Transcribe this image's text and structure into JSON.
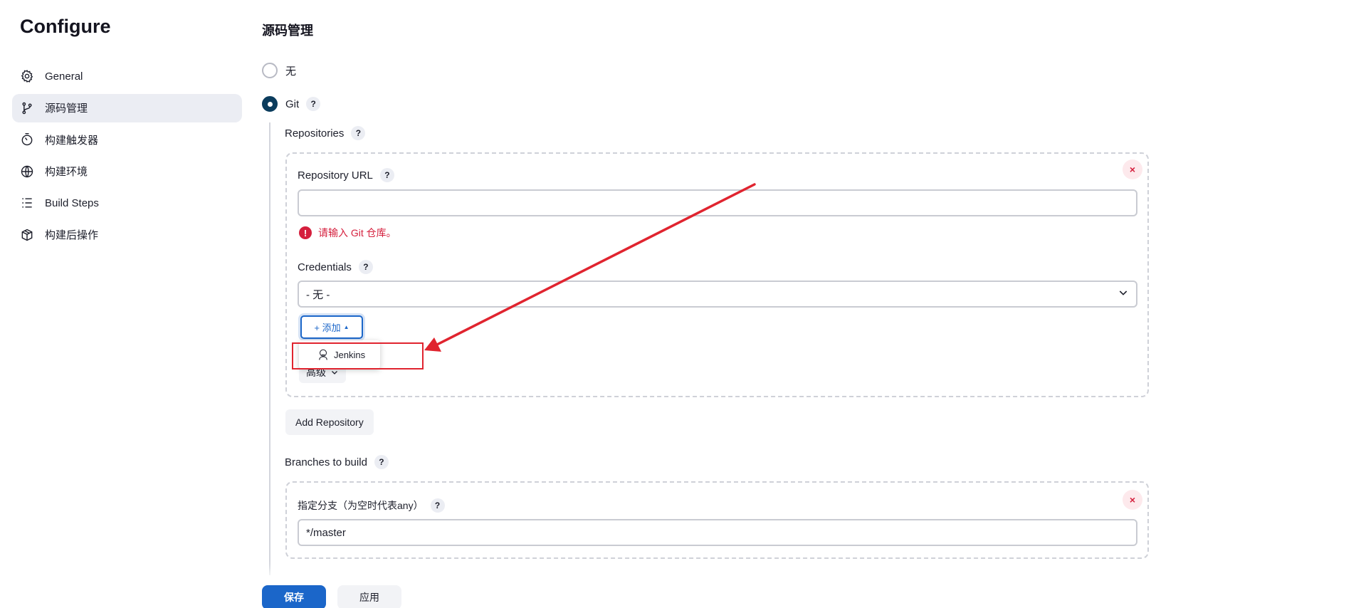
{
  "sidebar": {
    "title": "Configure",
    "items": [
      {
        "label": "General",
        "icon": "gear-icon"
      },
      {
        "label": "源码管理",
        "icon": "git-branch-icon",
        "active": true
      },
      {
        "label": "构建触发器",
        "icon": "timer-icon"
      },
      {
        "label": "构建环境",
        "icon": "globe-icon"
      },
      {
        "label": "Build Steps",
        "icon": "list-icon"
      },
      {
        "label": "构建后操作",
        "icon": "package-icon"
      }
    ]
  },
  "scm": {
    "title": "源码管理",
    "options": [
      {
        "label": "无",
        "checked": false
      },
      {
        "label": "Git",
        "checked": true
      }
    ],
    "help_glyph": "?"
  },
  "git": {
    "repositories_label": "Repositories",
    "repository_url_label": "Repository URL",
    "repository_url_value": "",
    "repository_url_error": "请输入 Git 仓库。",
    "credentials_label": "Credentials",
    "credentials_selected": "- 无 -",
    "add_button_label": "+ 添加",
    "add_menu_items": [
      "Jenkins"
    ],
    "advanced_label": "高级",
    "add_repository_label": "Add Repository",
    "branches_label": "Branches to build",
    "branch_specifier_label": "指定分支（为空时代表any）",
    "branch_specifier_value": "*/master",
    "remove_glyph": "×"
  },
  "footer": {
    "save_label": "保存",
    "apply_label": "应用"
  },
  "colors": {
    "primary": "#1b66c9",
    "radio_checked": "#0b3c5d",
    "error": "#d51f3d",
    "annotation": "#e0242f",
    "active_nav_bg": "#ebedf3"
  }
}
